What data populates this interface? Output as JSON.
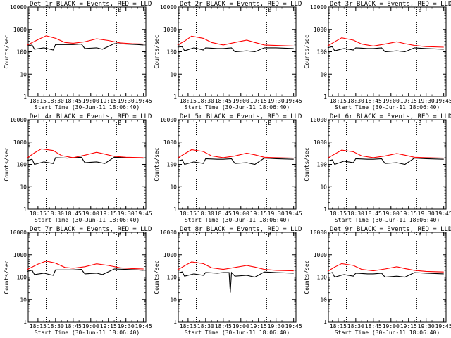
{
  "chart_data": [
    {
      "type": "line",
      "title": "Det 1r BLACK = Events, RED = LLD",
      "xlabel": "Start Time (30-Jun-11 18:06:40)",
      "ylabel": "Counts/sec",
      "y_scale": "log",
      "ylim": [
        1,
        10000
      ],
      "x_tick_labels": [
        "18:15",
        "18:30",
        "18:45",
        "19:00",
        "19:15",
        "19:30",
        "19:45"
      ],
      "vertical_dotted_markers": [
        "18:22",
        "19:22"
      ],
      "series": [
        {
          "color": "#000000",
          "x": [
            "18:06",
            "18:10",
            "18:12",
            "18:20",
            "18:28",
            "18:30",
            "18:35",
            "18:45",
            "18:52",
            "18:55",
            "19:05",
            "19:10",
            "19:20",
            "19:30",
            "19:40",
            "19:45"
          ],
          "values": [
            180,
            200,
            130,
            150,
            120,
            210,
            210,
            210,
            220,
            140,
            150,
            130,
            230,
            220,
            210,
            200
          ]
        },
        {
          "color": "#ff0000",
          "x": [
            "18:06",
            "18:15",
            "18:22",
            "18:30",
            "18:38",
            "18:45",
            "18:55",
            "19:05",
            "19:15",
            "19:25",
            "19:35",
            "19:45"
          ],
          "values": [
            200,
            350,
            520,
            400,
            260,
            240,
            280,
            380,
            320,
            250,
            230,
            220
          ]
        }
      ]
    },
    {
      "type": "line",
      "title": "Det 2r BLACK = Events, RED = LLD",
      "xlabel": "Start Time (30-Jun-11 18:06:40)",
      "ylabel": "Counts/sec",
      "y_scale": "log",
      "ylim": [
        1,
        10000
      ],
      "x_tick_labels": [
        "18:15",
        "18:30",
        "18:45",
        "19:00",
        "19:15",
        "19:30",
        "19:45"
      ],
      "vertical_dotted_markers": [
        "18:22",
        "19:22"
      ],
      "series": [
        {
          "color": "#000000",
          "x": [
            "18:06",
            "18:10",
            "18:12",
            "18:20",
            "18:28",
            "18:30",
            "18:40",
            "18:45",
            "18:52",
            "18:55",
            "19:05",
            "19:12",
            "19:20",
            "19:30",
            "19:45"
          ],
          "values": [
            160,
            170,
            110,
            150,
            120,
            150,
            140,
            140,
            150,
            100,
            110,
            100,
            150,
            150,
            140
          ]
        },
        {
          "color": "#ff0000",
          "x": [
            "18:06",
            "18:12",
            "18:18",
            "18:28",
            "18:35",
            "18:45",
            "18:55",
            "19:05",
            "19:12",
            "19:20",
            "19:30",
            "19:45"
          ],
          "values": [
            200,
            300,
            500,
            400,
            260,
            200,
            260,
            330,
            260,
            200,
            190,
            180
          ]
        }
      ]
    },
    {
      "type": "line",
      "title": "Det 3r BLACK = Events, RED = LLD",
      "xlabel": "Start Time (30-Jun-11 18:06:40)",
      "ylabel": "Counts/sec",
      "y_scale": "log",
      "ylim": [
        1,
        10000
      ],
      "x_tick_labels": [
        "18:15",
        "18:30",
        "18:45",
        "19:00",
        "19:15",
        "19:30",
        "19:45"
      ],
      "vertical_dotted_markers": [
        "18:22",
        "19:22"
      ],
      "series": [
        {
          "color": "#000000",
          "x": [
            "18:06",
            "18:10",
            "18:12",
            "18:20",
            "18:28",
            "18:30",
            "18:40",
            "18:45",
            "18:52",
            "18:55",
            "19:05",
            "19:12",
            "19:20",
            "19:30",
            "19:45"
          ],
          "values": [
            150,
            170,
            110,
            140,
            120,
            150,
            140,
            140,
            150,
            100,
            110,
            100,
            150,
            140,
            130
          ]
        },
        {
          "color": "#ff0000",
          "x": [
            "18:06",
            "18:12",
            "18:18",
            "18:28",
            "18:35",
            "18:45",
            "18:55",
            "19:05",
            "19:12",
            "19:20",
            "19:30",
            "19:45"
          ],
          "values": [
            180,
            280,
            420,
            330,
            220,
            180,
            220,
            280,
            230,
            190,
            170,
            160
          ]
        }
      ]
    },
    {
      "type": "line",
      "title": "Det 4r BLACK = Events, RED = LLD",
      "xlabel": "Start Time (30-Jun-11 18:06:40)",
      "ylabel": "Counts/sec",
      "y_scale": "log",
      "ylim": [
        1,
        10000
      ],
      "x_tick_labels": [
        "18:15",
        "18:30",
        "18:45",
        "19:00",
        "19:15",
        "19:30",
        "19:45"
      ],
      "vertical_dotted_markers": [
        "18:22",
        "19:22"
      ],
      "series": [
        {
          "color": "#000000",
          "x": [
            "18:06",
            "18:10",
            "18:12",
            "18:20",
            "18:28",
            "18:30",
            "18:40",
            "18:45",
            "18:52",
            "18:55",
            "19:05",
            "19:12",
            "19:20",
            "19:30",
            "19:45"
          ],
          "values": [
            150,
            170,
            100,
            130,
            110,
            200,
            190,
            200,
            210,
            120,
            130,
            110,
            210,
            200,
            190
          ]
        },
        {
          "color": "#ff0000",
          "x": [
            "18:06",
            "18:12",
            "18:18",
            "18:28",
            "18:35",
            "18:45",
            "18:55",
            "19:05",
            "19:12",
            "19:20",
            "19:30",
            "19:45"
          ],
          "values": [
            200,
            330,
            500,
            420,
            250,
            200,
            260,
            350,
            290,
            230,
            210,
            200
          ]
        }
      ]
    },
    {
      "type": "line",
      "title": "Det 5r BLACK = Events, RED = LLD",
      "xlabel": "Start Time (30-Jun-11 18:06:40)",
      "ylabel": "Counts/sec",
      "y_scale": "log",
      "ylim": [
        1,
        10000
      ],
      "x_tick_labels": [
        "18:15",
        "18:30",
        "18:45",
        "19:00",
        "19:15",
        "19:30",
        "19:45"
      ],
      "vertical_dotted_markers": [
        "18:22",
        "19:22"
      ],
      "series": [
        {
          "color": "#000000",
          "x": [
            "18:06",
            "18:10",
            "18:12",
            "18:20",
            "18:28",
            "18:30",
            "18:40",
            "18:45",
            "18:52",
            "18:55",
            "19:05",
            "19:12",
            "19:20",
            "19:30",
            "19:45"
          ],
          "values": [
            140,
            160,
            100,
            130,
            110,
            180,
            170,
            170,
            180,
            110,
            120,
            100,
            190,
            180,
            170
          ]
        },
        {
          "color": "#ff0000",
          "x": [
            "18:06",
            "18:12",
            "18:18",
            "18:28",
            "18:35",
            "18:45",
            "18:55",
            "19:05",
            "19:12",
            "19:20",
            "19:30",
            "19:45"
          ],
          "values": [
            190,
            300,
            460,
            380,
            240,
            200,
            240,
            320,
            270,
            210,
            200,
            190
          ]
        }
      ]
    },
    {
      "type": "line",
      "title": "Det 6r BLACK = Events, RED = LLD",
      "xlabel": "Start Time (30-Jun-11 18:06:40)",
      "ylabel": "Counts/sec",
      "y_scale": "log",
      "ylim": [
        1,
        10000
      ],
      "x_tick_labels": [
        "18:15",
        "18:30",
        "18:45",
        "19:00",
        "19:15",
        "19:30",
        "19:45"
      ],
      "vertical_dotted_markers": [
        "18:22",
        "19:22"
      ],
      "series": [
        {
          "color": "#000000",
          "x": [
            "18:06",
            "18:10",
            "18:12",
            "18:20",
            "18:28",
            "18:30",
            "18:40",
            "18:45",
            "18:52",
            "18:55",
            "19:05",
            "19:12",
            "19:20",
            "19:30",
            "19:45"
          ],
          "values": [
            140,
            160,
            100,
            140,
            120,
            180,
            170,
            170,
            180,
            110,
            120,
            100,
            190,
            180,
            170
          ]
        },
        {
          "color": "#ff0000",
          "x": [
            "18:06",
            "18:12",
            "18:18",
            "18:28",
            "18:35",
            "18:45",
            "18:55",
            "19:05",
            "19:12",
            "19:20",
            "19:30",
            "19:45"
          ],
          "values": [
            190,
            290,
            440,
            370,
            240,
            200,
            240,
            310,
            260,
            210,
            200,
            190
          ]
        }
      ]
    },
    {
      "type": "line",
      "title": "Det 7r BLACK = Events, RED = LLD",
      "xlabel": "Start Time (30-Jun-11 18:06:40)",
      "ylabel": "Counts/sec",
      "y_scale": "log",
      "ylim": [
        1,
        10000
      ],
      "x_tick_labels": [
        "18:15",
        "18:30",
        "18:45",
        "19:00",
        "19:15",
        "19:30",
        "19:45"
      ],
      "vertical_dotted_markers": [
        "18:22",
        "19:22"
      ],
      "series": [
        {
          "color": "#000000",
          "x": [
            "18:06",
            "18:10",
            "18:12",
            "18:20",
            "18:28",
            "18:30",
            "18:35",
            "18:45",
            "18:52",
            "18:55",
            "19:05",
            "19:10",
            "19:20",
            "19:30",
            "19:40",
            "19:45"
          ],
          "values": [
            180,
            200,
            130,
            150,
            120,
            210,
            210,
            210,
            220,
            140,
            150,
            130,
            230,
            220,
            210,
            200
          ]
        },
        {
          "color": "#ff0000",
          "x": [
            "18:06",
            "18:15",
            "18:22",
            "18:30",
            "18:38",
            "18:45",
            "18:55",
            "19:05",
            "19:15",
            "19:25",
            "19:35",
            "19:45"
          ],
          "values": [
            220,
            380,
            520,
            420,
            270,
            250,
            290,
            390,
            330,
            260,
            240,
            230
          ]
        }
      ]
    },
    {
      "type": "line",
      "title": "Det 8r BLACK = Events, RED = LLD",
      "xlabel": "Start Time (30-Jun-11 18:06:40)",
      "ylabel": "Counts/sec",
      "y_scale": "log",
      "ylim": [
        1,
        10000
      ],
      "x_tick_labels": [
        "18:15",
        "18:30",
        "18:45",
        "19:00",
        "19:15",
        "19:30",
        "19:45"
      ],
      "vertical_dotted_markers": [
        "18:22",
        "19:22"
      ],
      "series": [
        {
          "color": "#000000",
          "x": [
            "18:06",
            "18:10",
            "18:12",
            "18:20",
            "18:28",
            "18:30",
            "18:40",
            "18:45",
            "18:50",
            "18:51",
            "18:52",
            "18:55",
            "19:05",
            "19:12",
            "19:20",
            "19:30",
            "19:45"
          ],
          "values": [
            150,
            170,
            110,
            140,
            120,
            160,
            150,
            160,
            160,
            20,
            160,
            110,
            120,
            100,
            170,
            160,
            150
          ]
        },
        {
          "color": "#ff0000",
          "x": [
            "18:06",
            "18:12",
            "18:18",
            "18:28",
            "18:35",
            "18:45",
            "18:55",
            "19:05",
            "19:12",
            "19:20",
            "19:30",
            "19:45"
          ],
          "values": [
            210,
            320,
            480,
            400,
            260,
            220,
            270,
            330,
            280,
            220,
            200,
            190
          ]
        }
      ]
    },
    {
      "type": "line",
      "title": "Det 9r BLACK = Events, RED = LLD",
      "xlabel": "Start Time (30-Jun-11 18:06:40)",
      "ylabel": "Counts/sec",
      "y_scale": "log",
      "ylim": [
        1,
        10000
      ],
      "x_tick_labels": [
        "18:15",
        "18:30",
        "18:45",
        "19:00",
        "19:15",
        "19:30",
        "19:45"
      ],
      "vertical_dotted_markers": [
        "18:22",
        "19:22"
      ],
      "series": [
        {
          "color": "#000000",
          "x": [
            "18:06",
            "18:10",
            "18:12",
            "18:20",
            "18:28",
            "18:30",
            "18:40",
            "18:45",
            "18:52",
            "18:55",
            "19:05",
            "19:12",
            "19:20",
            "19:30",
            "19:45"
          ],
          "values": [
            140,
            160,
            100,
            130,
            110,
            150,
            140,
            140,
            150,
            100,
            110,
            100,
            160,
            150,
            140
          ]
        },
        {
          "color": "#ff0000",
          "x": [
            "18:06",
            "18:12",
            "18:18",
            "18:28",
            "18:35",
            "18:45",
            "18:55",
            "19:05",
            "19:12",
            "19:20",
            "19:30",
            "19:45"
          ],
          "values": [
            180,
            280,
            400,
            330,
            220,
            190,
            230,
            290,
            240,
            200,
            180,
            170
          ]
        }
      ]
    }
  ]
}
